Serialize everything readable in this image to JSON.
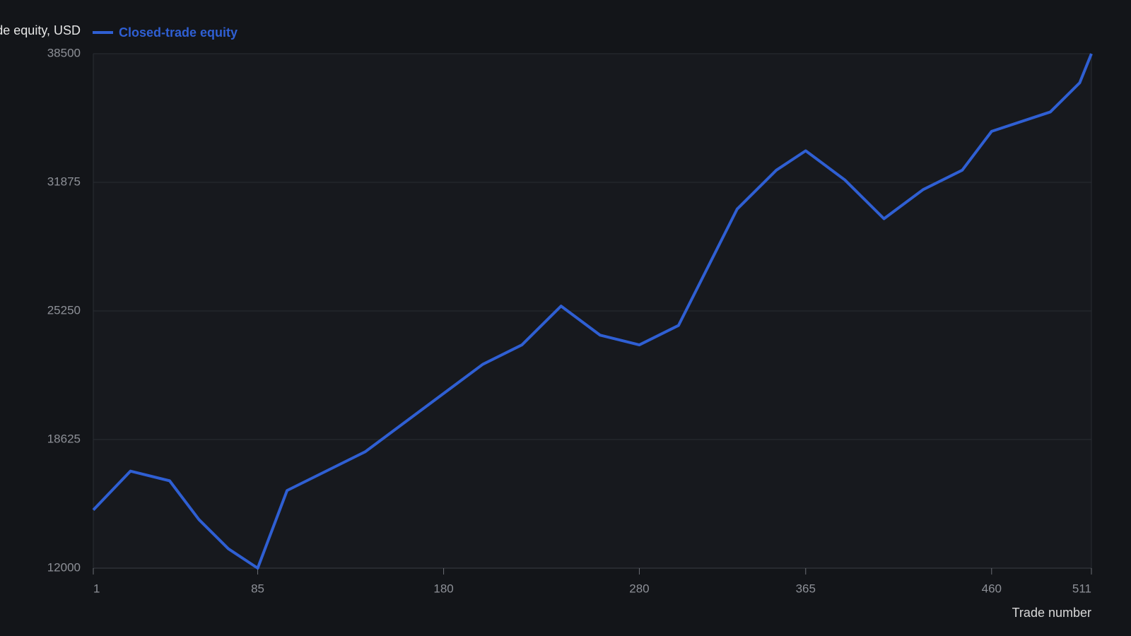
{
  "chart_data": {
    "type": "line",
    "y_label": "Closed-trade equity, USD",
    "x_label": "Trade number",
    "x": [
      1,
      20,
      40,
      55,
      70,
      85,
      100,
      140,
      200,
      220,
      240,
      260,
      280,
      300,
      330,
      350,
      365,
      385,
      405,
      425,
      445,
      460,
      490,
      505,
      511
    ],
    "series": [
      {
        "name": "Closed-trade equity",
        "color": "#2f5fd3",
        "values": [
          15000,
          17000,
          16500,
          14500,
          13000,
          12000,
          16000,
          18000,
          22500,
          23500,
          25500,
          24000,
          23500,
          24500,
          30500,
          32500,
          33500,
          32000,
          30000,
          31500,
          32500,
          34500,
          35500,
          37000,
          38500
        ]
      }
    ],
    "xlim": [
      1,
      511
    ],
    "xticks": [
      1,
      85,
      180,
      280,
      365,
      460,
      511
    ],
    "ylim": [
      12000,
      38500
    ],
    "yticks": [
      12000,
      18625,
      25250,
      31875,
      38500
    ],
    "grid": true
  }
}
